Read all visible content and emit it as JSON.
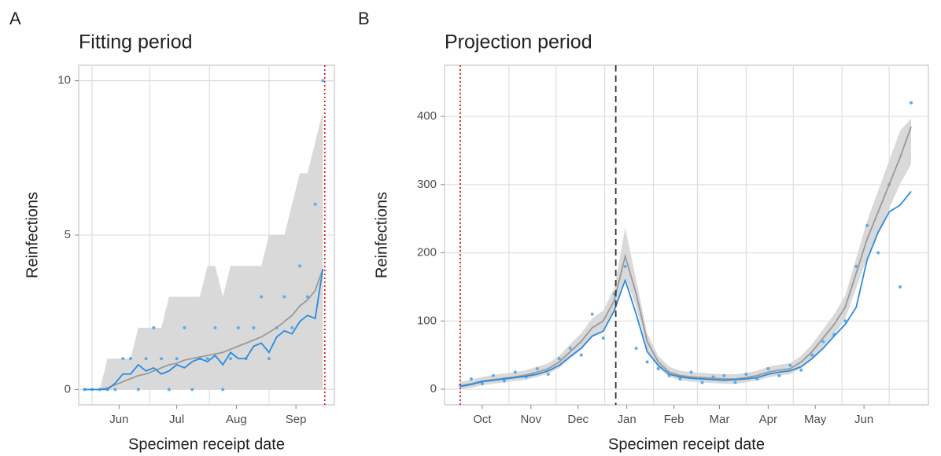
{
  "chart_data": [
    {
      "type": "line",
      "panel_label": "A",
      "title": "Fitting period",
      "x_label": "Specimen receipt date",
      "y_label": "Reinfections",
      "x": [
        148,
        152,
        156,
        160,
        164,
        168,
        172,
        176,
        180,
        184,
        188,
        192,
        196,
        200,
        204,
        208,
        212,
        216,
        220,
        224,
        228,
        232,
        236,
        240,
        244,
        248,
        252,
        256,
        260,
        264,
        268,
        272
      ],
      "band": {
        "color": "#d9d9d9",
        "upper": [
          0,
          0,
          0,
          1,
          1,
          1,
          1,
          2,
          2,
          2,
          2,
          3,
          3,
          3,
          3,
          3,
          4,
          4,
          3,
          4,
          4,
          4,
          4,
          4,
          5,
          5,
          5,
          6,
          7,
          7,
          8,
          9
        ],
        "lower": [
          0,
          0,
          0,
          0,
          0,
          0,
          0,
          0,
          0,
          0,
          0,
          0,
          0,
          0,
          0,
          0,
          0,
          0,
          0,
          0,
          0,
          0,
          0,
          0,
          0,
          0,
          0,
          0,
          0,
          0,
          0,
          0
        ]
      },
      "lines": [
        {
          "color": "#999999",
          "values": [
            0,
            0,
            0,
            0.05,
            0.15,
            0.25,
            0.35,
            0.45,
            0.5,
            0.6,
            0.7,
            0.8,
            0.85,
            0.95,
            1.0,
            1.05,
            1.1,
            1.15,
            1.2,
            1.3,
            1.4,
            1.5,
            1.6,
            1.7,
            1.85,
            2.0,
            2.2,
            2.4,
            2.7,
            2.9,
            3.2,
            3.9
          ]
        },
        {
          "color": "#2a8be0",
          "values": [
            0,
            0,
            0,
            0,
            0.2,
            0.5,
            0.5,
            0.8,
            0.6,
            0.7,
            0.5,
            0.6,
            0.8,
            0.7,
            0.9,
            1.0,
            0.9,
            1.1,
            0.8,
            1.2,
            1.0,
            1.0,
            1.4,
            1.5,
            1.2,
            1.7,
            1.9,
            1.8,
            2.2,
            2.4,
            2.3,
            3.9
          ]
        }
      ],
      "points": {
        "color": "#5aaeea",
        "values": [
          0,
          0,
          0,
          0,
          0,
          1,
          1,
          0,
          1,
          2,
          1,
          0,
          1,
          2,
          0,
          1,
          1,
          2,
          0,
          1,
          2,
          1,
          2,
          3,
          1,
          2,
          3,
          2,
          4,
          3,
          6,
          10
        ]
      },
      "vlines": [
        {
          "x": 273,
          "color": "#e41a1c",
          "dash": "dotted"
        }
      ],
      "xlim": [
        145,
        278
      ],
      "ylim": [
        -0.5,
        10.5
      ],
      "xticks": [
        {
          "value": 166,
          "label": "Jun"
        },
        {
          "value": 196,
          "label": "Jul"
        },
        {
          "value": 227,
          "label": "Aug"
        },
        {
          "value": 258,
          "label": "Sep"
        }
      ],
      "xgrid": [
        152,
        182,
        213,
        244
      ],
      "yticks": [
        0,
        5,
        10
      ],
      "grid": true
    },
    {
      "type": "line",
      "panel_label": "B",
      "title": "Projection period",
      "x_label": "Specimen receipt date",
      "y_label": "Reinfections",
      "x": [
        0,
        7,
        14,
        21,
        28,
        35,
        42,
        49,
        56,
        63,
        70,
        77,
        84,
        91,
        98,
        105,
        112,
        119,
        126,
        133,
        140,
        147,
        154,
        161,
        168,
        175,
        182,
        189,
        196,
        203,
        210,
        217,
        224,
        231,
        238,
        245,
        252,
        259,
        266,
        273,
        280,
        287
      ],
      "band": {
        "color": "#d9d9d9",
        "upper": [
          11,
          14,
          18,
          21,
          23,
          25,
          28,
          33,
          38,
          49,
          66,
          82,
          104,
          115,
          148,
          237,
          160,
          82,
          49,
          33,
          27,
          25,
          24,
          23,
          22,
          22,
          24,
          27,
          33,
          36,
          38,
          49,
          66,
          88,
          110,
          137,
          192,
          247,
          291,
          335,
          379,
          397
        ],
        "lower": [
          0,
          2,
          6,
          8,
          10,
          12,
          14,
          18,
          23,
          31,
          45,
          58,
          76,
          85,
          112,
          165,
          120,
          58,
          31,
          18,
          13,
          11,
          10,
          9,
          8,
          8,
          10,
          13,
          17,
          20,
          22,
          31,
          44,
          62,
          80,
          103,
          148,
          193,
          229,
          265,
          301,
          330
        ]
      },
      "lines": [
        {
          "color": "#999999",
          "values": [
            5,
            8,
            12,
            14,
            16,
            18,
            21,
            25,
            30,
            40,
            55,
            70,
            90,
            100,
            130,
            195,
            140,
            70,
            40,
            25,
            20,
            18,
            17,
            16,
            15,
            15,
            17,
            20,
            25,
            28,
            30,
            40,
            55,
            75,
            95,
            120,
            170,
            220,
            260,
            300,
            340,
            385
          ]
        },
        {
          "color": "#2a8be0",
          "values": [
            4,
            7,
            11,
            13,
            15,
            17,
            19,
            22,
            27,
            35,
            48,
            60,
            78,
            85,
            115,
            160,
            110,
            55,
            35,
            22,
            18,
            16,
            15,
            14,
            13,
            14,
            15,
            17,
            22,
            25,
            27,
            33,
            45,
            60,
            78,
            95,
            120,
            190,
            230,
            260,
            270,
            290
          ]
        }
      ],
      "points": {
        "color": "#5aaeea",
        "values": [
          6,
          15,
          8,
          20,
          12,
          25,
          18,
          30,
          22,
          45,
          60,
          50,
          110,
          75,
          140,
          180,
          60,
          40,
          30,
          20,
          15,
          25,
          10,
          18,
          20,
          10,
          22,
          15,
          30,
          20,
          35,
          28,
          50,
          70,
          80,
          100,
          180,
          240,
          200,
          300,
          150,
          420
        ]
      },
      "vlines": [
        {
          "x": 0,
          "color": "#e41a1c",
          "dash": "dotted"
        },
        {
          "x": 99,
          "color": "#333333",
          "dash": "dashed"
        }
      ],
      "xlim": [
        -10,
        298
      ],
      "ylim": [
        -23,
        475
      ],
      "xticks": [
        {
          "value": 14,
          "label": "Oct"
        },
        {
          "value": 45,
          "label": "Nov"
        },
        {
          "value": 75,
          "label": "Dec"
        },
        {
          "value": 106,
          "label": "Jan"
        },
        {
          "value": 136,
          "label": "Feb"
        },
        {
          "value": 165,
          "label": "Mar"
        },
        {
          "value": 196,
          "label": "Apr"
        },
        {
          "value": 226,
          "label": "May"
        },
        {
          "value": 257,
          "label": "Jun"
        }
      ],
      "xgrid": [
        0,
        31,
        61,
        92,
        123,
        151,
        182,
        212,
        243,
        273
      ],
      "yticks": [
        0,
        100,
        200,
        300,
        400
      ],
      "grid": true
    }
  ]
}
